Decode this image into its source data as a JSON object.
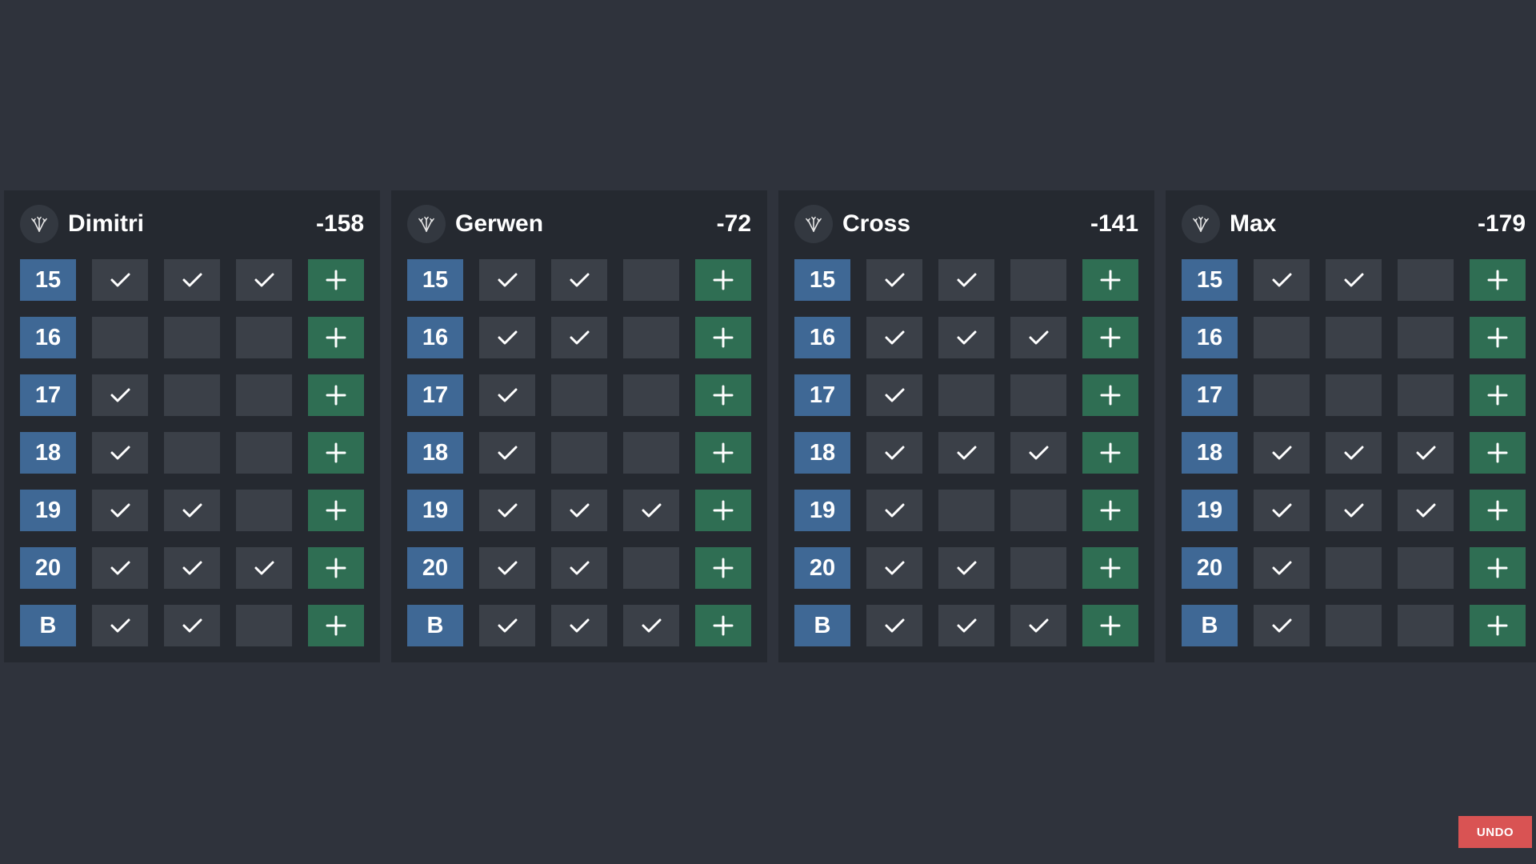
{
  "targets": [
    "15",
    "16",
    "17",
    "18",
    "19",
    "20",
    "B"
  ],
  "colors": {
    "background": "#2f333c",
    "panel": "#252930",
    "target": "#3f6895",
    "hit_cell": "#3b4048",
    "add_button": "#2f6e53",
    "undo_button": "#d95353"
  },
  "icons": {
    "avatar": "darts-icon",
    "hit": "check-icon",
    "add": "plus-icon"
  },
  "players": [
    {
      "name": "Dimitri",
      "score": "-158",
      "hits": [
        [
          1,
          1,
          1
        ],
        [
          0,
          0,
          0
        ],
        [
          1,
          0,
          0
        ],
        [
          1,
          0,
          0
        ],
        [
          1,
          1,
          0
        ],
        [
          1,
          1,
          1
        ],
        [
          1,
          1,
          0
        ]
      ]
    },
    {
      "name": "Gerwen",
      "score": "-72",
      "hits": [
        [
          1,
          1,
          0
        ],
        [
          1,
          1,
          0
        ],
        [
          1,
          0,
          0
        ],
        [
          1,
          0,
          0
        ],
        [
          1,
          1,
          1
        ],
        [
          1,
          1,
          0
        ],
        [
          1,
          1,
          1
        ]
      ]
    },
    {
      "name": "Cross",
      "score": "-141",
      "hits": [
        [
          1,
          1,
          0
        ],
        [
          1,
          1,
          1
        ],
        [
          1,
          0,
          0
        ],
        [
          1,
          1,
          1
        ],
        [
          1,
          0,
          0
        ],
        [
          1,
          1,
          0
        ],
        [
          1,
          1,
          1
        ]
      ]
    },
    {
      "name": "Max",
      "score": "-179",
      "hits": [
        [
          1,
          1,
          0
        ],
        [
          0,
          0,
          0
        ],
        [
          0,
          0,
          0
        ],
        [
          1,
          1,
          1
        ],
        [
          1,
          1,
          1
        ],
        [
          1,
          0,
          0
        ],
        [
          1,
          0,
          0
        ]
      ]
    }
  ],
  "undo_label": "UNDO"
}
